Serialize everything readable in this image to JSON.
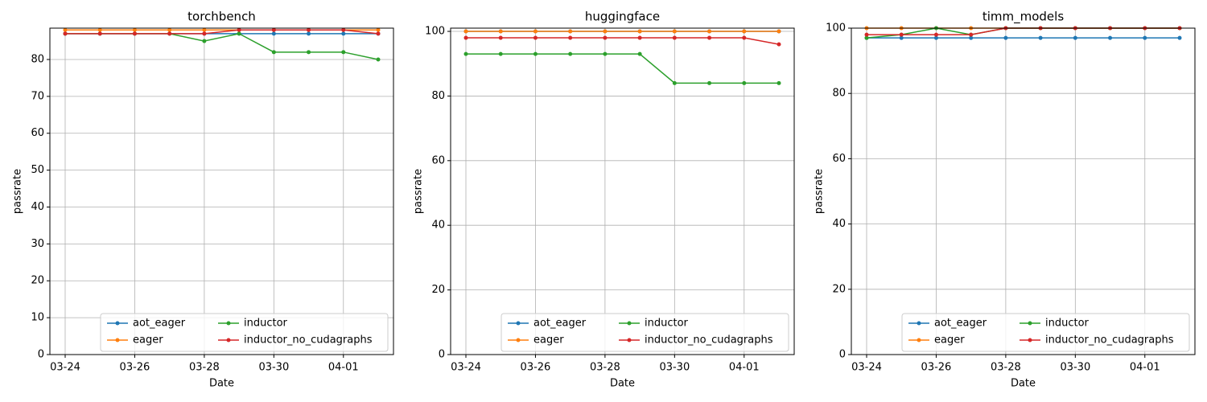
{
  "chart_data": [
    {
      "type": "line",
      "title": "torchbench",
      "xlabel": "Date",
      "ylabel": "passrate",
      "x": [
        "03-24",
        "03-25",
        "03-26",
        "03-27",
        "03-28",
        "03-29",
        "03-30",
        "03-31",
        "04-01",
        "04-02"
      ],
      "xticks": [
        "03-24",
        "03-26",
        "03-28",
        "03-30",
        "04-01"
      ],
      "ylim": [
        0,
        88.5
      ],
      "yticks": [
        0,
        10,
        20,
        30,
        40,
        50,
        60,
        70,
        80
      ],
      "grid": true,
      "legend": "lower right",
      "series": [
        {
          "name": "aot_eager",
          "color": "#1f77b4",
          "values": [
            87,
            87,
            87,
            87,
            87,
            87,
            87,
            87,
            87,
            87
          ]
        },
        {
          "name": "eager",
          "color": "#ff7f0e",
          "values": [
            88,
            88,
            88,
            88,
            88,
            88,
            88,
            88,
            88,
            88
          ]
        },
        {
          "name": "inductor",
          "color": "#2ca02c",
          "values": [
            87,
            87,
            87,
            87,
            85,
            87,
            82,
            82,
            82,
            80
          ]
        },
        {
          "name": "inductor_no_cudagraphs",
          "color": "#d62728",
          "values": [
            87,
            87,
            87,
            87,
            87,
            88,
            88,
            88,
            88,
            87
          ]
        }
      ]
    },
    {
      "type": "line",
      "title": "huggingface",
      "xlabel": "Date",
      "ylabel": "passrate",
      "x": [
        "03-24",
        "03-25",
        "03-26",
        "03-27",
        "03-28",
        "03-29",
        "03-30",
        "03-31",
        "04-01",
        "04-02"
      ],
      "xticks": [
        "03-24",
        "03-26",
        "03-28",
        "03-30",
        "04-01"
      ],
      "ylim": [
        0,
        101
      ],
      "yticks": [
        0,
        20,
        40,
        60,
        80,
        100
      ],
      "grid": true,
      "legend": "lower right",
      "series": [
        {
          "name": "aot_eager",
          "color": "#1f77b4",
          "values": [
            100,
            100,
            100,
            100,
            100,
            100,
            100,
            100,
            100,
            100
          ]
        },
        {
          "name": "eager",
          "color": "#ff7f0e",
          "values": [
            100,
            100,
            100,
            100,
            100,
            100,
            100,
            100,
            100,
            100
          ]
        },
        {
          "name": "inductor",
          "color": "#2ca02c",
          "values": [
            93,
            93,
            93,
            93,
            93,
            93,
            84,
            84,
            84,
            84
          ]
        },
        {
          "name": "inductor_no_cudagraphs",
          "color": "#d62728",
          "values": [
            98,
            98,
            98,
            98,
            98,
            98,
            98,
            98,
            98,
            96
          ]
        }
      ]
    },
    {
      "type": "line",
      "title": "timm_models",
      "xlabel": "Date",
      "ylabel": "passrate",
      "x": [
        "03-24",
        "03-25",
        "03-26",
        "03-27",
        "03-28",
        "03-29",
        "03-30",
        "03-31",
        "04-01",
        "04-02"
      ],
      "xticks": [
        "03-24",
        "03-26",
        "03-28",
        "03-30",
        "04-01"
      ],
      "ylim": [
        0,
        100
      ],
      "yticks": [
        0,
        20,
        40,
        60,
        80,
        100
      ],
      "grid": true,
      "legend": "lower right",
      "series": [
        {
          "name": "aot_eager",
          "color": "#1f77b4",
          "values": [
            97,
            97,
            97,
            97,
            97,
            97,
            97,
            97,
            97,
            97
          ]
        },
        {
          "name": "eager",
          "color": "#ff7f0e",
          "values": [
            100,
            100,
            100,
            100,
            100,
            100,
            100,
            100,
            100,
            100
          ]
        },
        {
          "name": "inductor",
          "color": "#2ca02c",
          "values": [
            97,
            98,
            100,
            98,
            100,
            100,
            100,
            100,
            100,
            100
          ]
        },
        {
          "name": "inductor_no_cudagraphs",
          "color": "#d62728",
          "values": [
            98,
            98,
            98,
            98,
            100,
            100,
            100,
            100,
            100,
            100
          ]
        }
      ]
    }
  ]
}
